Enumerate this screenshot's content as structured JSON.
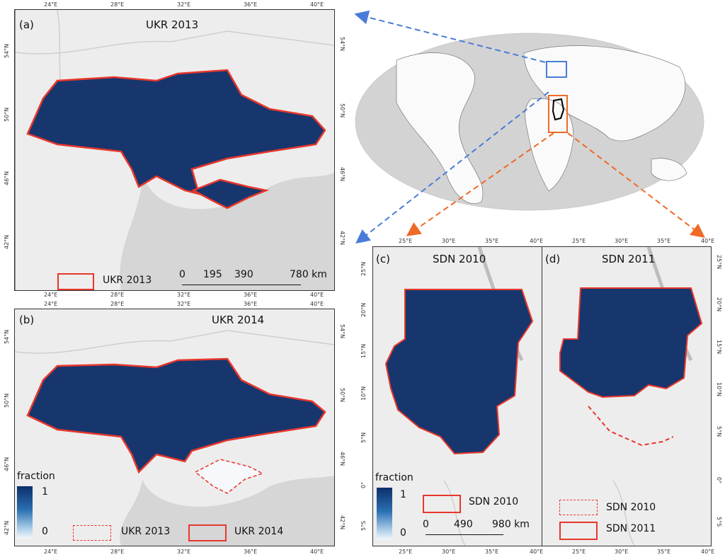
{
  "colors": {
    "ocean": "#d8d8d8",
    "land": "#ededed",
    "country": "#17366d",
    "border": "#e8372c",
    "blue_box": "#4a7bd8",
    "orange_box": "#ee6a27"
  },
  "panel_a": {
    "label": "(a)",
    "title": "UKR 2013",
    "lon_ticks": [
      "24°E",
      "28°E",
      "32°E",
      "36°E",
      "40°E"
    ],
    "lat_ticks": [
      "54°N",
      "50°N",
      "46°N",
      "42°N"
    ],
    "legend": "UKR 2013",
    "scale": {
      "labels": [
        "0",
        "195",
        "390",
        "780 km"
      ]
    }
  },
  "panel_b": {
    "label": "(b)",
    "title": "UKR 2014",
    "lon_ticks": [
      "24°E",
      "28°E",
      "32°E",
      "36°E",
      "40°E"
    ],
    "lat_ticks": [
      "54°N",
      "50°N",
      "46°N",
      "42°N"
    ],
    "fraction": {
      "title": "fraction",
      "max": "1",
      "min": "0"
    },
    "legend_dashed": "UKR 2013",
    "legend_solid": "UKR 2014"
  },
  "panel_c": {
    "label": "(c)",
    "title": "SDN 2010",
    "lon_ticks": [
      "25°E",
      "30°E",
      "35°E",
      "40°E"
    ],
    "lat_ticks": [
      "25°N",
      "20°N",
      "15°N",
      "10°N",
      "5°N",
      "0°",
      "5°S"
    ],
    "fraction": {
      "title": "fraction",
      "max": "1",
      "min": "0"
    },
    "legend": "SDN 2010",
    "scale": {
      "labels": [
        "0",
        "490",
        "980 km"
      ]
    }
  },
  "panel_d": {
    "label": "(d)",
    "title": "SDN 2011",
    "lon_ticks": [
      "25°E",
      "30°E",
      "35°E",
      "40°E"
    ],
    "lat_ticks": [
      "25°N",
      "20°N",
      "15°N",
      "10°N",
      "5°N",
      "0°",
      "5°S"
    ],
    "legend_dashed": "SDN 2010",
    "legend_solid": "SDN 2011"
  }
}
